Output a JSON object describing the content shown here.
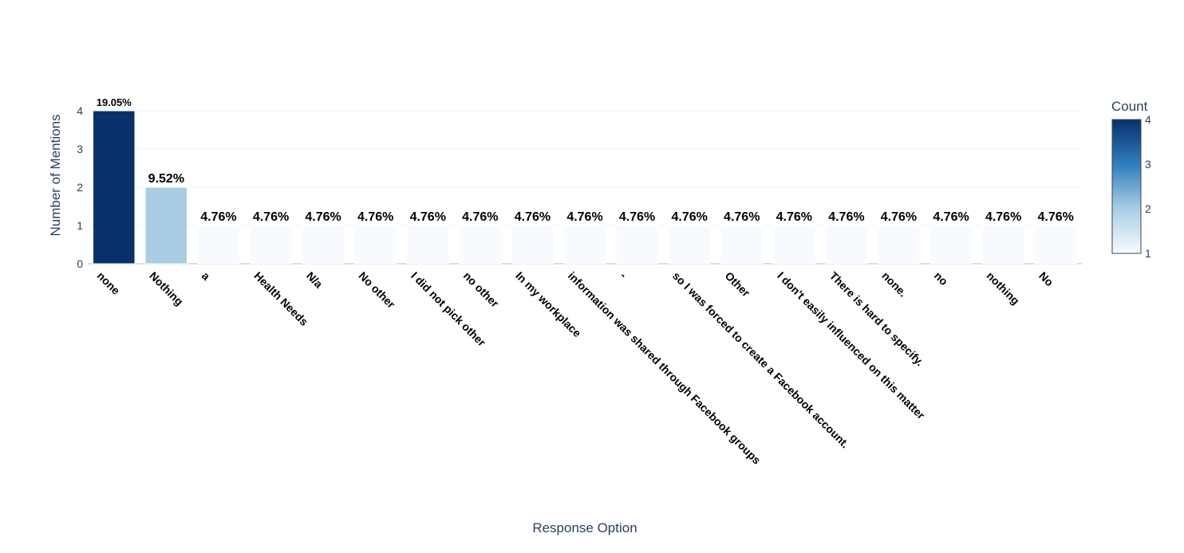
{
  "chart_data": {
    "type": "bar",
    "title": "",
    "xlabel": "Response Option",
    "ylabel": "Number of Mentions",
    "ylim": [
      0,
      4.2
    ],
    "yticks": [
      0,
      1,
      2,
      3,
      4
    ],
    "grid": true,
    "categories": [
      "none",
      "Nothing",
      "a",
      "Health Needs",
      "N/a",
      "No other",
      "I did not pick other",
      "no other",
      "In my workplace",
      "information was shared through Facebook groups",
      "-",
      "so I was forced to create a Facebook account.",
      "Other",
      "I don't easily influenced on this matter",
      "There is hard to specify.",
      "none.",
      "no",
      "nothing",
      "No"
    ],
    "values": [
      4,
      2,
      1,
      1,
      1,
      1,
      1,
      1,
      1,
      1,
      1,
      1,
      1,
      1,
      1,
      1,
      1,
      1,
      1
    ],
    "data_labels": [
      "19.05%",
      "9.52%",
      "4.76%",
      "4.76%",
      "4.76%",
      "4.76%",
      "4.76%",
      "4.76%",
      "4.76%",
      "4.76%",
      "4.76%",
      "4.76%",
      "4.76%",
      "4.76%",
      "4.76%",
      "4.76%",
      "4.76%",
      "4.76%",
      "4.76%"
    ],
    "colorscale": "Blues",
    "colorbar": {
      "title": "Count",
      "range": [
        1,
        4
      ],
      "ticks": [
        1,
        2,
        3,
        4
      ],
      "colors": [
        "#f7fbff",
        "#a8cee4",
        "#2f7ebc",
        "#08306b"
      ]
    }
  }
}
